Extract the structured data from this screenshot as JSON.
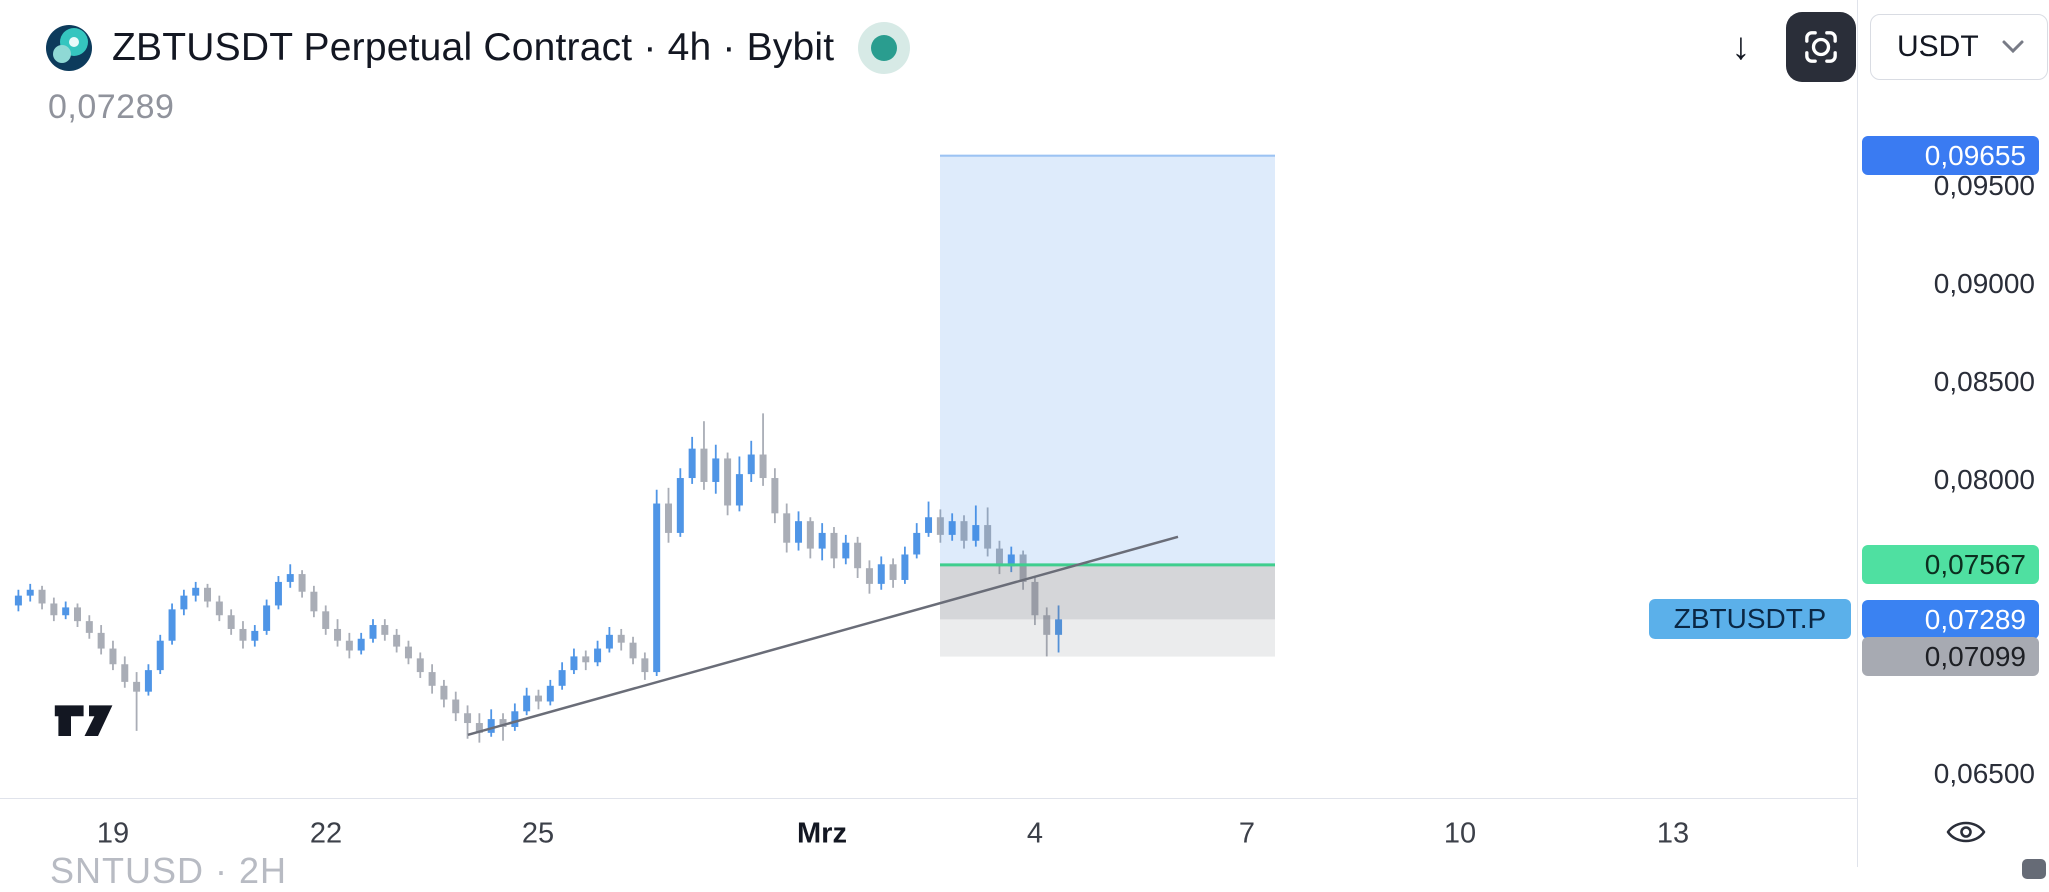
{
  "header": {
    "title": "ZBTUSDT Perpetual Contract · 4h · Bybit",
    "price_value": "0,07289",
    "status_color": "#2a9d8f"
  },
  "toolbar": {
    "currency_label": "USDT",
    "icons": {
      "download": "arrow-down-icon",
      "snapshot": "viewfinder-icon",
      "currency": "chevron-down-icon"
    }
  },
  "footer": {
    "partial_text": "SNTUSD · 2H"
  },
  "chart_data": {
    "type": "candlestick",
    "title": "ZBTUSDT Perpetual Contract · 4h · Bybit",
    "symbol_ticker": "ZBTUSDT.P",
    "interval": "4h",
    "exchange": "Bybit",
    "last_price": 0.07289,
    "last_price_label": "0,07289",
    "scale": {
      "price_a": 0.095,
      "y_a": 186,
      "price_b": 0.065,
      "y_b": 774
    },
    "bars": {
      "x0": 18.4,
      "dx": 11.82,
      "body_w": 7
    },
    "colors": {
      "up": "#4f95e6",
      "down": "#a9adb6",
      "trendline": "#6a6d78",
      "entry_line": "#3fce8e",
      "profit_fill": "rgba(52,130,230,0.16)",
      "profit_edge": "rgba(52,130,230,0.45)",
      "loss_fill_upper": "rgba(115,119,130,0.30)",
      "loss_fill_lower": "rgba(115,119,130,0.14)"
    },
    "candles": [
      [
        0.0736,
        0.0744,
        0.0733,
        0.0741
      ],
      [
        0.0741,
        0.0747,
        0.0738,
        0.0744
      ],
      [
        0.0744,
        0.0746,
        0.0734,
        0.0737
      ],
      [
        0.0737,
        0.074,
        0.0728,
        0.0731
      ],
      [
        0.0731,
        0.0738,
        0.0729,
        0.0735
      ],
      [
        0.0735,
        0.0737,
        0.0725,
        0.0728
      ],
      [
        0.0728,
        0.0731,
        0.0719,
        0.0722
      ],
      [
        0.0722,
        0.0726,
        0.0711,
        0.0714
      ],
      [
        0.0714,
        0.0718,
        0.0703,
        0.0706
      ],
      [
        0.0706,
        0.071,
        0.0694,
        0.0697
      ],
      [
        0.0697,
        0.0702,
        0.0672,
        0.0692
      ],
      [
        0.0692,
        0.0706,
        0.069,
        0.0703
      ],
      [
        0.0703,
        0.0721,
        0.0701,
        0.0718
      ],
      [
        0.0718,
        0.0737,
        0.0716,
        0.0734
      ],
      [
        0.0734,
        0.0744,
        0.0731,
        0.0741
      ],
      [
        0.0741,
        0.0748,
        0.0738,
        0.0745
      ],
      [
        0.0745,
        0.0747,
        0.0735,
        0.0738
      ],
      [
        0.0738,
        0.0741,
        0.0728,
        0.0731
      ],
      [
        0.0731,
        0.0734,
        0.0721,
        0.0724
      ],
      [
        0.0724,
        0.0728,
        0.0714,
        0.0718
      ],
      [
        0.0718,
        0.0726,
        0.0715,
        0.0723
      ],
      [
        0.0723,
        0.0739,
        0.0721,
        0.0736
      ],
      [
        0.0736,
        0.0751,
        0.0734,
        0.0748
      ],
      [
        0.0748,
        0.0757,
        0.0745,
        0.0752
      ],
      [
        0.0752,
        0.0754,
        0.074,
        0.0743
      ],
      [
        0.0743,
        0.0746,
        0.073,
        0.0733
      ],
      [
        0.0733,
        0.0736,
        0.0721,
        0.0724
      ],
      [
        0.0724,
        0.0729,
        0.0715,
        0.0718
      ],
      [
        0.0718,
        0.0722,
        0.0709,
        0.0713
      ],
      [
        0.0713,
        0.0722,
        0.0711,
        0.0719
      ],
      [
        0.0719,
        0.0729,
        0.0717,
        0.0726
      ],
      [
        0.0726,
        0.0729,
        0.0718,
        0.0721
      ],
      [
        0.0721,
        0.0724,
        0.0712,
        0.0715
      ],
      [
        0.0715,
        0.0718,
        0.0706,
        0.0709
      ],
      [
        0.0709,
        0.0712,
        0.0699,
        0.0702
      ],
      [
        0.0702,
        0.0706,
        0.0691,
        0.0695
      ],
      [
        0.0695,
        0.0698,
        0.0684,
        0.0688
      ],
      [
        0.0688,
        0.0692,
        0.0677,
        0.0681
      ],
      [
        0.0681,
        0.0685,
        0.0668,
        0.0676
      ],
      [
        0.0676,
        0.0681,
        0.0666,
        0.0671
      ],
      [
        0.0671,
        0.0683,
        0.0669,
        0.0678
      ],
      [
        0.0678,
        0.0681,
        0.0667,
        0.0674
      ],
      [
        0.0674,
        0.0686,
        0.0672,
        0.0682
      ],
      [
        0.0682,
        0.0694,
        0.068,
        0.069
      ],
      [
        0.069,
        0.0693,
        0.0683,
        0.0687
      ],
      [
        0.0687,
        0.0698,
        0.0685,
        0.0695
      ],
      [
        0.0695,
        0.0707,
        0.0693,
        0.0703
      ],
      [
        0.0703,
        0.0714,
        0.0701,
        0.071
      ],
      [
        0.071,
        0.0713,
        0.0703,
        0.0707
      ],
      [
        0.0707,
        0.0718,
        0.0705,
        0.0714
      ],
      [
        0.0714,
        0.0725,
        0.0712,
        0.0721
      ],
      [
        0.0721,
        0.0724,
        0.0713,
        0.0717
      ],
      [
        0.0717,
        0.072,
        0.0706,
        0.0709
      ],
      [
        0.0709,
        0.0712,
        0.0698,
        0.0702
      ],
      [
        0.0702,
        0.0795,
        0.07,
        0.0788
      ],
      [
        0.0788,
        0.0796,
        0.0768,
        0.0773
      ],
      [
        0.0773,
        0.0806,
        0.0771,
        0.0801
      ],
      [
        0.0801,
        0.0822,
        0.0798,
        0.0816
      ],
      [
        0.0816,
        0.083,
        0.0795,
        0.0799
      ],
      [
        0.0799,
        0.0818,
        0.0793,
        0.0811
      ],
      [
        0.0811,
        0.0814,
        0.0782,
        0.0787
      ],
      [
        0.0787,
        0.0812,
        0.0784,
        0.0803
      ],
      [
        0.0803,
        0.082,
        0.0799,
        0.0813
      ],
      [
        0.0813,
        0.0834,
        0.0797,
        0.0801
      ],
      [
        0.0801,
        0.0806,
        0.0778,
        0.0783
      ],
      [
        0.0783,
        0.0788,
        0.0763,
        0.0768
      ],
      [
        0.0768,
        0.0784,
        0.0764,
        0.0779
      ],
      [
        0.0779,
        0.0781,
        0.076,
        0.0765
      ],
      [
        0.0765,
        0.0778,
        0.0759,
        0.0773
      ],
      [
        0.0773,
        0.0776,
        0.0755,
        0.076
      ],
      [
        0.076,
        0.0772,
        0.0757,
        0.0768
      ],
      [
        0.0768,
        0.0771,
        0.075,
        0.0755
      ],
      [
        0.0755,
        0.0759,
        0.0742,
        0.0747
      ],
      [
        0.0747,
        0.0761,
        0.0744,
        0.0757
      ],
      [
        0.0757,
        0.076,
        0.0745,
        0.0749
      ],
      [
        0.0749,
        0.0766,
        0.0747,
        0.0762
      ],
      [
        0.0762,
        0.0778,
        0.076,
        0.0773
      ],
      [
        0.0773,
        0.0789,
        0.0771,
        0.0781
      ],
      [
        0.0781,
        0.0785,
        0.0768,
        0.0772
      ],
      [
        0.0772,
        0.0783,
        0.0769,
        0.0779
      ],
      [
        0.0779,
        0.0782,
        0.0765,
        0.0769
      ],
      [
        0.0769,
        0.0787,
        0.0766,
        0.0777
      ],
      [
        0.0777,
        0.0786,
        0.0761,
        0.0765
      ],
      [
        0.0765,
        0.0769,
        0.0752,
        0.0756
      ],
      [
        0.0756,
        0.0766,
        0.0753,
        0.0762
      ],
      [
        0.0762,
        0.0764,
        0.0744,
        0.0748
      ],
      [
        0.0748,
        0.0751,
        0.0726,
        0.0731
      ],
      [
        0.0731,
        0.0735,
        0.071,
        0.0721
      ],
      [
        0.0721,
        0.0736,
        0.0712,
        0.07289
      ]
    ],
    "x_ticks": [
      {
        "label": "19",
        "x": 113
      },
      {
        "label": "22",
        "x": 326
      },
      {
        "label": "25",
        "x": 538
      },
      {
        "label": "Mrz",
        "x": 822,
        "bold": true
      },
      {
        "label": "4",
        "x": 1035
      },
      {
        "label": "7",
        "x": 1247
      },
      {
        "label": "10",
        "x": 1460
      },
      {
        "label": "13",
        "x": 1673
      }
    ],
    "y_ticks": [
      {
        "label": "0,09500",
        "price": 0.095
      },
      {
        "label": "0,09000",
        "price": 0.09
      },
      {
        "label": "0,08500",
        "price": 0.085
      },
      {
        "label": "0,08000",
        "price": 0.08
      },
      {
        "label": "0,06500",
        "price": 0.065
      }
    ],
    "price_badges": [
      {
        "text": "0,09655",
        "price": 0.09655,
        "bg": "#3a7bf2",
        "fg": "#ffffff",
        "name": "target-price-badge"
      },
      {
        "text": "0,07567",
        "price": 0.07567,
        "bg": "#4fe0a1",
        "fg": "#0c2e1f",
        "name": "entry-price-badge"
      },
      {
        "text": "0,07289",
        "price": 0.07289,
        "bg": "#3a82f2",
        "fg": "#ffffff",
        "name": "last-price-badge"
      },
      {
        "text": "0,07099",
        "price": 0.07099,
        "bg": "#a7aab2",
        "fg": "#1d1f24",
        "name": "stop-price-badge"
      }
    ],
    "symbol_badge": {
      "text": "ZBTUSDT.P",
      "bg": "#5bb0ea",
      "fg": "#0a2744"
    },
    "position_tool": {
      "x1": 940,
      "x2": 1275,
      "target_price": 0.09655,
      "entry_price": 0.07567,
      "current_price": 0.07289,
      "stop_price": 0.07099
    },
    "trendline": {
      "x1": 468,
      "price1": 0.067,
      "x2": 1178,
      "price2": 0.0771
    }
  }
}
